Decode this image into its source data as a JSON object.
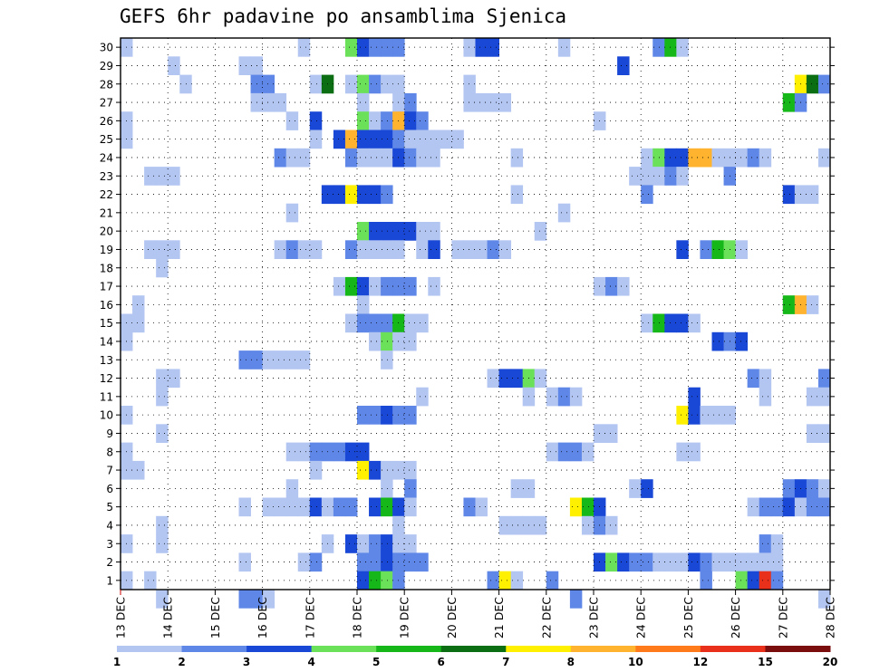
{
  "chart_data": {
    "type": "heatmap",
    "title": "GEFS 6hr padavine po ansamblima Sjenica",
    "x_tick_labels": [
      "13 DEC",
      "14 DEC",
      "15 DEC",
      "16 DEC",
      "17 DEC",
      "18 DEC",
      "19 DEC",
      "20 DEC",
      "21 DEC",
      "22 DEC",
      "23 DEC",
      "24 DEC",
      "25 DEC",
      "26 DEC",
      "27 DEC",
      "28 DEC"
    ],
    "y_tick_labels": [
      "1",
      "2",
      "3",
      "4",
      "5",
      "6",
      "7",
      "8",
      "9",
      "10",
      "11",
      "12",
      "13",
      "14",
      "15",
      "16",
      "17",
      "18",
      "19",
      "20",
      "21",
      "22",
      "23",
      "24",
      "25",
      "26",
      "27",
      "28",
      "29",
      "30"
    ],
    "x_range": [
      0,
      60
    ],
    "y_range": [
      0,
      30
    ],
    "grid": true,
    "colorbar": {
      "labels": [
        "1",
        "2",
        "3",
        "4",
        "5",
        "6",
        "7",
        "8",
        "10",
        "12",
        "15",
        "20"
      ],
      "colors": [
        "#b3c6f2",
        "#5f87e8",
        "#1a48d6",
        "#6be15a",
        "#15b818",
        "#0b6e12",
        "#fff000",
        "#ffb32e",
        "#ff7a1a",
        "#e8301a",
        "#7a0d0d"
      ]
    },
    "color_levels": {
      "1": "#b3c6f2",
      "2": "#5f87e8",
      "3": "#1a48d6",
      "4": "#6be15a",
      "5": "#15b818",
      "6": "#0b6e12",
      "7": "#fff000",
      "8": "#ffb32e",
      "10": "#ff7a1a",
      "12": "#e8301a"
    },
    "cells": [
      [
        30,
        0,
        1
      ],
      [
        30,
        15,
        1
      ],
      [
        30,
        19,
        4
      ],
      [
        30,
        20,
        3
      ],
      [
        30,
        21,
        2
      ],
      [
        30,
        22,
        2
      ],
      [
        30,
        23,
        2
      ],
      [
        30,
        29,
        1
      ],
      [
        30,
        30,
        3
      ],
      [
        30,
        31,
        3
      ],
      [
        30,
        37,
        1
      ],
      [
        30,
        45,
        2
      ],
      [
        30,
        46,
        5
      ],
      [
        30,
        47,
        1
      ],
      [
        29,
        4,
        1
      ],
      [
        29,
        10,
        1
      ],
      [
        29,
        11,
        1
      ],
      [
        29,
        42,
        3
      ],
      [
        28,
        5,
        1
      ],
      [
        28,
        11,
        2
      ],
      [
        28,
        12,
        2
      ],
      [
        28,
        16,
        1
      ],
      [
        28,
        17,
        6
      ],
      [
        28,
        19,
        1
      ],
      [
        28,
        20,
        4
      ],
      [
        28,
        21,
        2
      ],
      [
        28,
        22,
        1
      ],
      [
        28,
        23,
        1
      ],
      [
        28,
        29,
        1
      ],
      [
        28,
        57,
        7
      ],
      [
        28,
        58,
        6
      ],
      [
        28,
        59,
        2
      ],
      [
        27,
        11,
        1
      ],
      [
        27,
        12,
        1
      ],
      [
        27,
        13,
        1
      ],
      [
        27,
        20,
        1
      ],
      [
        27,
        23,
        1
      ],
      [
        27,
        24,
        2
      ],
      [
        27,
        29,
        1
      ],
      [
        27,
        30,
        1
      ],
      [
        27,
        31,
        1
      ],
      [
        27,
        32,
        1
      ],
      [
        27,
        56,
        5
      ],
      [
        27,
        57,
        2
      ],
      [
        26,
        0,
        1
      ],
      [
        26,
        14,
        1
      ],
      [
        26,
        16,
        3
      ],
      [
        26,
        20,
        4
      ],
      [
        26,
        21,
        1
      ],
      [
        26,
        22,
        2
      ],
      [
        26,
        23,
        8
      ],
      [
        26,
        24,
        3
      ],
      [
        26,
        25,
        2
      ],
      [
        26,
        40,
        1
      ],
      [
        25,
        0,
        1
      ],
      [
        25,
        16,
        1
      ],
      [
        25,
        18,
        3
      ],
      [
        25,
        19,
        8
      ],
      [
        25,
        20,
        3
      ],
      [
        25,
        21,
        3
      ],
      [
        25,
        22,
        3
      ],
      [
        25,
        23,
        2
      ],
      [
        25,
        24,
        1
      ],
      [
        25,
        25,
        1
      ],
      [
        25,
        26,
        1
      ],
      [
        25,
        27,
        1
      ],
      [
        25,
        28,
        1
      ],
      [
        24,
        13,
        2
      ],
      [
        24,
        14,
        1
      ],
      [
        24,
        15,
        1
      ],
      [
        24,
        19,
        2
      ],
      [
        24,
        20,
        1
      ],
      [
        24,
        21,
        1
      ],
      [
        24,
        22,
        1
      ],
      [
        24,
        23,
        3
      ],
      [
        24,
        24,
        2
      ],
      [
        24,
        25,
        1
      ],
      [
        24,
        26,
        1
      ],
      [
        24,
        33,
        1
      ],
      [
        24,
        44,
        1
      ],
      [
        24,
        45,
        4
      ],
      [
        24,
        46,
        3
      ],
      [
        24,
        47,
        3
      ],
      [
        24,
        48,
        8
      ],
      [
        24,
        49,
        8
      ],
      [
        24,
        50,
        1
      ],
      [
        24,
        51,
        1
      ],
      [
        24,
        52,
        1
      ],
      [
        24,
        53,
        2
      ],
      [
        24,
        54,
        1
      ],
      [
        24,
        59,
        1
      ],
      [
        23,
        2,
        1
      ],
      [
        23,
        3,
        1
      ],
      [
        23,
        4,
        1
      ],
      [
        23,
        43,
        1
      ],
      [
        23,
        44,
        1
      ],
      [
        23,
        45,
        1
      ],
      [
        23,
        46,
        2
      ],
      [
        23,
        47,
        1
      ],
      [
        23,
        51,
        2
      ],
      [
        22,
        17,
        3
      ],
      [
        22,
        18,
        3
      ],
      [
        22,
        19,
        7
      ],
      [
        22,
        20,
        3
      ],
      [
        22,
        21,
        3
      ],
      [
        22,
        22,
        2
      ],
      [
        22,
        33,
        1
      ],
      [
        22,
        44,
        2
      ],
      [
        22,
        56,
        3
      ],
      [
        22,
        57,
        1
      ],
      [
        22,
        58,
        1
      ],
      [
        21,
        14,
        1
      ],
      [
        21,
        37,
        1
      ],
      [
        20,
        20,
        4
      ],
      [
        20,
        21,
        3
      ],
      [
        20,
        22,
        3
      ],
      [
        20,
        23,
        3
      ],
      [
        20,
        24,
        3
      ],
      [
        20,
        25,
        1
      ],
      [
        20,
        26,
        1
      ],
      [
        20,
        35,
        1
      ],
      [
        19,
        2,
        1
      ],
      [
        19,
        3,
        1
      ],
      [
        19,
        4,
        1
      ],
      [
        19,
        13,
        1
      ],
      [
        19,
        14,
        2
      ],
      [
        19,
        15,
        1
      ],
      [
        19,
        16,
        1
      ],
      [
        19,
        19,
        2
      ],
      [
        19,
        20,
        1
      ],
      [
        19,
        21,
        1
      ],
      [
        19,
        22,
        1
      ],
      [
        19,
        23,
        1
      ],
      [
        19,
        25,
        1
      ],
      [
        19,
        26,
        3
      ],
      [
        19,
        28,
        1
      ],
      [
        19,
        29,
        1
      ],
      [
        19,
        30,
        1
      ],
      [
        19,
        31,
        2
      ],
      [
        19,
        32,
        1
      ],
      [
        19,
        47,
        3
      ],
      [
        19,
        49,
        2
      ],
      [
        19,
        50,
        5
      ],
      [
        19,
        51,
        4
      ],
      [
        19,
        52,
        1
      ],
      [
        18,
        3,
        1
      ],
      [
        17,
        18,
        1
      ],
      [
        17,
        19,
        5
      ],
      [
        17,
        20,
        3
      ],
      [
        17,
        21,
        1
      ],
      [
        17,
        22,
        2
      ],
      [
        17,
        23,
        2
      ],
      [
        17,
        24,
        2
      ],
      [
        17,
        26,
        1
      ],
      [
        17,
        40,
        1
      ],
      [
        17,
        41,
        2
      ],
      [
        17,
        42,
        1
      ],
      [
        16,
        1,
        1
      ],
      [
        16,
        20,
        1
      ],
      [
        16,
        56,
        5
      ],
      [
        16,
        57,
        8
      ],
      [
        16,
        58,
        1
      ],
      [
        15,
        0,
        1
      ],
      [
        15,
        1,
        1
      ],
      [
        15,
        19,
        1
      ],
      [
        15,
        20,
        2
      ],
      [
        15,
        21,
        2
      ],
      [
        15,
        22,
        2
      ],
      [
        15,
        23,
        5
      ],
      [
        15,
        24,
        1
      ],
      [
        15,
        25,
        1
      ],
      [
        15,
        44,
        1
      ],
      [
        15,
        45,
        5
      ],
      [
        15,
        46,
        3
      ],
      [
        15,
        47,
        3
      ],
      [
        15,
        48,
        1
      ],
      [
        14,
        0,
        1
      ],
      [
        14,
        21,
        1
      ],
      [
        14,
        22,
        4
      ],
      [
        14,
        23,
        1
      ],
      [
        14,
        24,
        1
      ],
      [
        14,
        50,
        3
      ],
      [
        14,
        51,
        2
      ],
      [
        14,
        52,
        3
      ],
      [
        13,
        10,
        2
      ],
      [
        13,
        11,
        2
      ],
      [
        13,
        12,
        1
      ],
      [
        13,
        13,
        1
      ],
      [
        13,
        14,
        1
      ],
      [
        13,
        15,
        1
      ],
      [
        13,
        22,
        1
      ],
      [
        12,
        3,
        1
      ],
      [
        12,
        4,
        1
      ],
      [
        12,
        31,
        1
      ],
      [
        12,
        32,
        3
      ],
      [
        12,
        33,
        3
      ],
      [
        12,
        34,
        4
      ],
      [
        12,
        35,
        1
      ],
      [
        12,
        53,
        2
      ],
      [
        12,
        54,
        1
      ],
      [
        12,
        59,
        2
      ],
      [
        11,
        3,
        1
      ],
      [
        11,
        25,
        1
      ],
      [
        11,
        34,
        1
      ],
      [
        11,
        36,
        1
      ],
      [
        11,
        37,
        2
      ],
      [
        11,
        38,
        1
      ],
      [
        11,
        48,
        3
      ],
      [
        11,
        54,
        1
      ],
      [
        11,
        58,
        1
      ],
      [
        11,
        59,
        1
      ],
      [
        10,
        0,
        1
      ],
      [
        10,
        20,
        2
      ],
      [
        10,
        21,
        2
      ],
      [
        10,
        22,
        3
      ],
      [
        10,
        23,
        2
      ],
      [
        10,
        24,
        2
      ],
      [
        10,
        47,
        7
      ],
      [
        10,
        48,
        3
      ],
      [
        10,
        49,
        1
      ],
      [
        10,
        50,
        1
      ],
      [
        10,
        51,
        1
      ],
      [
        9,
        3,
        1
      ],
      [
        9,
        40,
        1
      ],
      [
        9,
        41,
        1
      ],
      [
        9,
        58,
        1
      ],
      [
        9,
        59,
        1
      ],
      [
        8,
        0,
        1
      ],
      [
        8,
        14,
        1
      ],
      [
        8,
        15,
        1
      ],
      [
        8,
        16,
        2
      ],
      [
        8,
        17,
        2
      ],
      [
        8,
        18,
        2
      ],
      [
        8,
        19,
        3
      ],
      [
        8,
        20,
        3
      ],
      [
        8,
        36,
        1
      ],
      [
        8,
        37,
        2
      ],
      [
        8,
        38,
        2
      ],
      [
        8,
        39,
        1
      ],
      [
        8,
        47,
        1
      ],
      [
        8,
        48,
        1
      ],
      [
        7,
        0,
        1
      ],
      [
        7,
        1,
        1
      ],
      [
        7,
        16,
        1
      ],
      [
        7,
        20,
        7
      ],
      [
        7,
        21,
        3
      ],
      [
        7,
        22,
        1
      ],
      [
        7,
        23,
        1
      ],
      [
        7,
        24,
        1
      ],
      [
        6,
        14,
        1
      ],
      [
        6,
        22,
        1
      ],
      [
        6,
        24,
        2
      ],
      [
        6,
        33,
        1
      ],
      [
        6,
        34,
        1
      ],
      [
        6,
        43,
        1
      ],
      [
        6,
        44,
        3
      ],
      [
        6,
        56,
        2
      ],
      [
        6,
        57,
        3
      ],
      [
        6,
        58,
        2
      ],
      [
        6,
        59,
        1
      ],
      [
        5,
        10,
        1
      ],
      [
        5,
        12,
        1
      ],
      [
        5,
        13,
        1
      ],
      [
        5,
        14,
        1
      ],
      [
        5,
        15,
        1
      ],
      [
        5,
        16,
        3
      ],
      [
        5,
        17,
        1
      ],
      [
        5,
        18,
        2
      ],
      [
        5,
        19,
        2
      ],
      [
        5,
        21,
        3
      ],
      [
        5,
        22,
        5
      ],
      [
        5,
        23,
        3
      ],
      [
        5,
        24,
        1
      ],
      [
        5,
        29,
        2
      ],
      [
        5,
        30,
        1
      ],
      [
        5,
        38,
        7
      ],
      [
        5,
        39,
        5
      ],
      [
        5,
        40,
        3
      ],
      [
        5,
        53,
        1
      ],
      [
        5,
        54,
        2
      ],
      [
        5,
        55,
        2
      ],
      [
        5,
        56,
        3
      ],
      [
        5,
        57,
        1
      ],
      [
        5,
        58,
        2
      ],
      [
        5,
        59,
        2
      ],
      [
        4,
        3,
        1
      ],
      [
        4,
        23,
        1
      ],
      [
        4,
        32,
        1
      ],
      [
        4,
        33,
        1
      ],
      [
        4,
        34,
        1
      ],
      [
        4,
        35,
        1
      ],
      [
        4,
        39,
        1
      ],
      [
        4,
        40,
        2
      ],
      [
        4,
        41,
        1
      ],
      [
        3,
        0,
        1
      ],
      [
        3,
        3,
        1
      ],
      [
        3,
        17,
        1
      ],
      [
        3,
        19,
        3
      ],
      [
        3,
        20,
        1
      ],
      [
        3,
        21,
        2
      ],
      [
        3,
        22,
        3
      ],
      [
        3,
        23,
        1
      ],
      [
        3,
        24,
        1
      ],
      [
        3,
        54,
        2
      ],
      [
        3,
        55,
        1
      ],
      [
        2,
        10,
        1
      ],
      [
        2,
        15,
        1
      ],
      [
        2,
        16,
        2
      ],
      [
        2,
        20,
        2
      ],
      [
        2,
        21,
        2
      ],
      [
        2,
        22,
        3
      ],
      [
        2,
        23,
        2
      ],
      [
        2,
        24,
        2
      ],
      [
        2,
        25,
        2
      ],
      [
        2,
        40,
        3
      ],
      [
        2,
        41,
        4
      ],
      [
        2,
        42,
        3
      ],
      [
        2,
        43,
        2
      ],
      [
        2,
        44,
        2
      ],
      [
        2,
        45,
        1
      ],
      [
        2,
        46,
        1
      ],
      [
        2,
        47,
        1
      ],
      [
        2,
        48,
        3
      ],
      [
        2,
        49,
        2
      ],
      [
        2,
        50,
        1
      ],
      [
        2,
        51,
        1
      ],
      [
        2,
        52,
        1
      ],
      [
        2,
        53,
        1
      ],
      [
        2,
        54,
        1
      ],
      [
        2,
        55,
        1
      ],
      [
        1,
        0,
        1
      ],
      [
        1,
        2,
        1
      ],
      [
        1,
        20,
        3
      ],
      [
        1,
        21,
        5
      ],
      [
        1,
        22,
        4
      ],
      [
        1,
        23,
        2
      ],
      [
        1,
        31,
        2
      ],
      [
        1,
        32,
        7
      ],
      [
        1,
        33,
        1
      ],
      [
        1,
        36,
        2
      ],
      [
        1,
        49,
        2
      ],
      [
        1,
        52,
        4
      ],
      [
        1,
        53,
        3
      ],
      [
        1,
        54,
        12
      ],
      [
        1,
        55,
        2
      ],
      [
        0,
        3,
        1
      ],
      [
        0,
        10,
        2
      ],
      [
        0,
        11,
        2
      ],
      [
        0,
        12,
        1
      ],
      [
        0,
        38,
        2
      ],
      [
        0,
        59,
        1
      ]
    ]
  }
}
